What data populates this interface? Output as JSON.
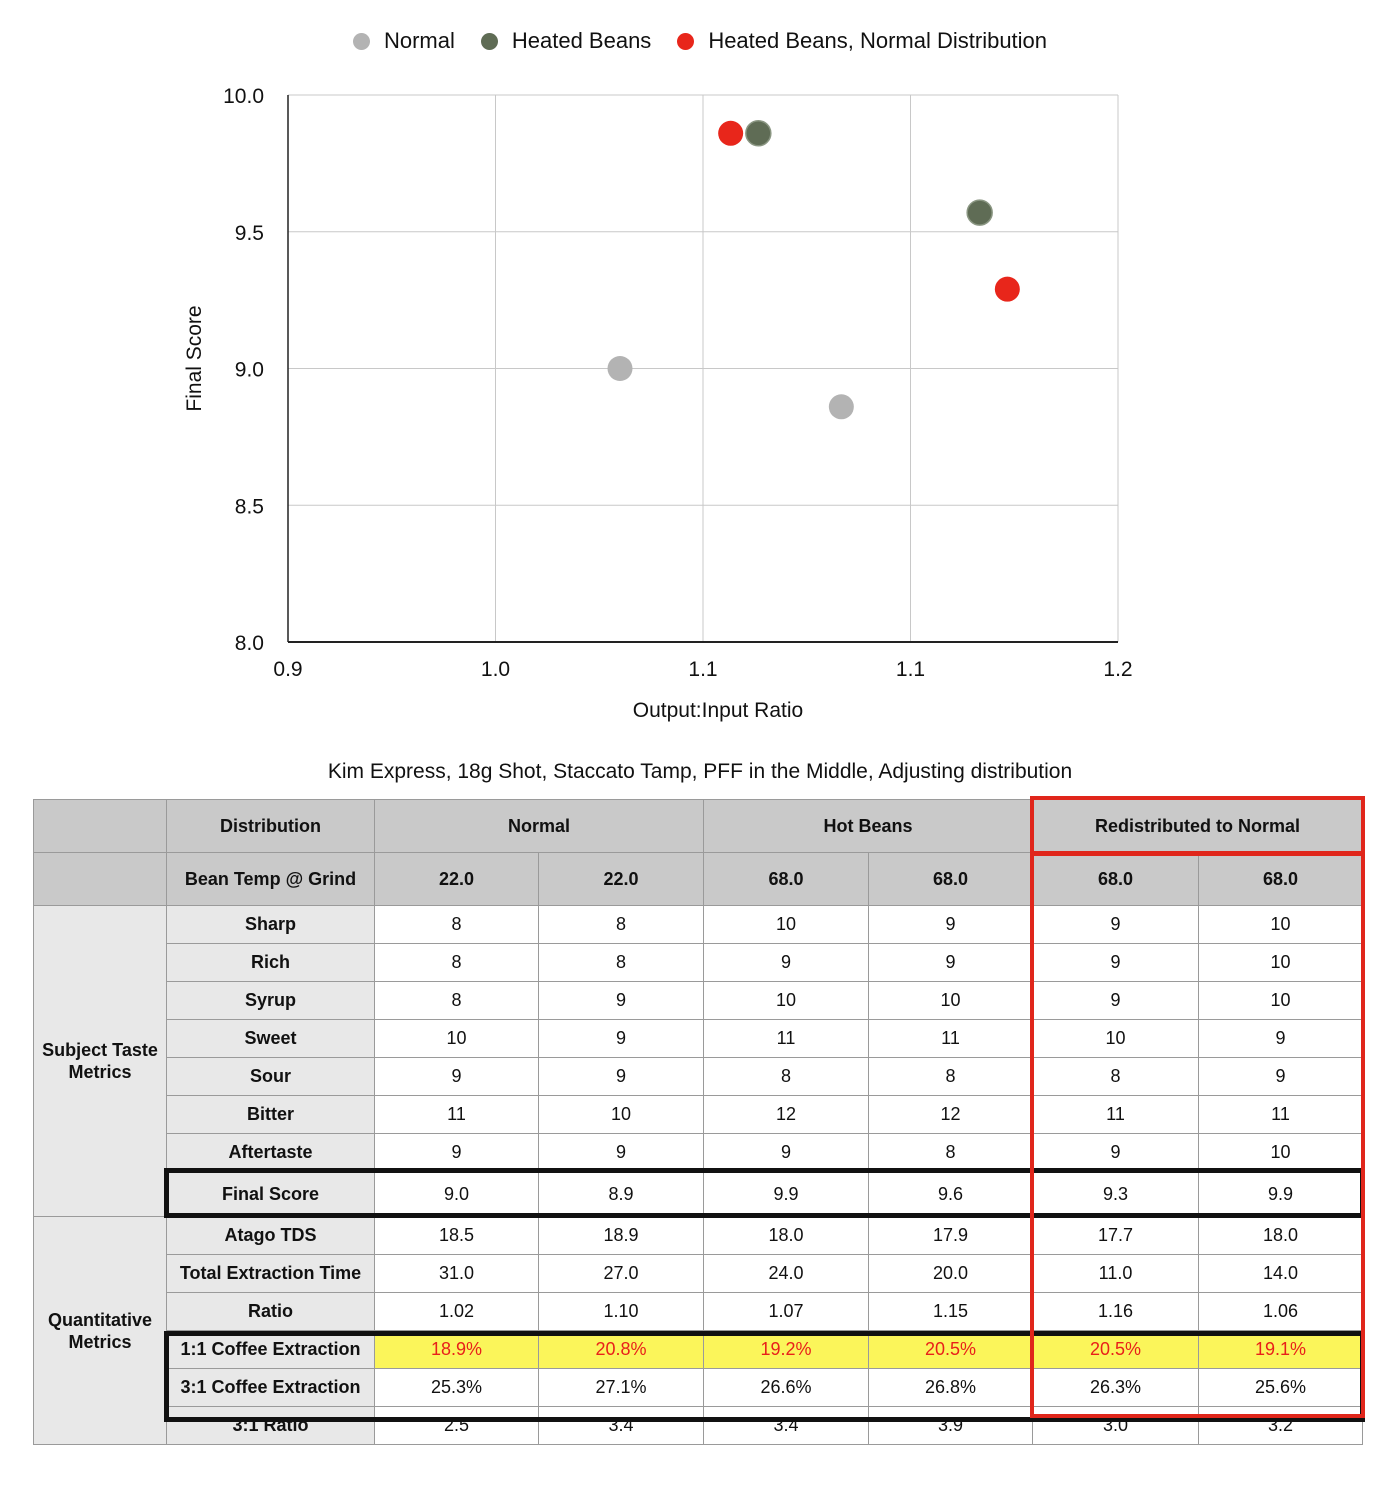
{
  "colors": {
    "normal": "#b3b3b3",
    "heated": "#5f6c55",
    "heated_normal_dist": "#e8261b",
    "highlight_yellow": "#fbf55a",
    "highlight_red_text": "#e8201a",
    "box_red": "#e0261b",
    "header_gray": "#c9c9c9",
    "label_gray": "#e8e8e8"
  },
  "legend": [
    {
      "label": "Normal",
      "color": "#b3b3b3"
    },
    {
      "label": "Heated Beans",
      "color": "#5f6c55"
    },
    {
      "label": "Heated Beans, Normal Distribution",
      "color": "#e8261b"
    }
  ],
  "chart_data": {
    "type": "scatter",
    "xlabel": "Output:Input Ratio",
    "ylabel": "Final Score",
    "xlim": [
      0.9,
      1.2
    ],
    "ylim": [
      8.0,
      10.0
    ],
    "x_ticks": [
      "0.9",
      "1.0",
      "1.1",
      "1.1",
      "1.2"
    ],
    "y_ticks": [
      "8.0",
      "8.5",
      "9.0",
      "9.5",
      "10.0"
    ],
    "grid": true,
    "legend_position": "top",
    "series": [
      {
        "name": "Normal",
        "color": "#b3b3b3",
        "points": [
          {
            "x": 1.02,
            "y": 9.0
          },
          {
            "x": 1.1,
            "y": 8.86
          }
        ]
      },
      {
        "name": "Heated Beans",
        "color": "#5f6c55",
        "points": [
          {
            "x": 1.07,
            "y": 9.86
          },
          {
            "x": 1.15,
            "y": 9.57
          }
        ]
      },
      {
        "name": "Heated Beans, Normal Distribution",
        "color": "#e8261b",
        "points": [
          {
            "x": 1.06,
            "y": 9.86
          },
          {
            "x": 1.16,
            "y": 9.29
          }
        ]
      }
    ]
  },
  "table": {
    "title": "Kim Express, 18g Shot, Staccato Tamp, PFF in the Middle, Adjusting distribution",
    "header": {
      "distribution_label": "Distribution",
      "groups": [
        "Normal",
        "Hot Beans",
        "Redistributed to Normal"
      ],
      "bean_temp_label": "Bean Temp @ Grind",
      "bean_temps": [
        "22.0",
        "22.0",
        "68.0",
        "68.0",
        "68.0",
        "68.0"
      ]
    },
    "taste_group_label": "Subject Taste Metrics",
    "taste_rows": [
      {
        "label": "Sharp",
        "values": [
          "8",
          "8",
          "10",
          "9",
          "9",
          "10"
        ]
      },
      {
        "label": "Rich",
        "values": [
          "8",
          "8",
          "9",
          "9",
          "9",
          "10"
        ]
      },
      {
        "label": "Syrup",
        "values": [
          "8",
          "9",
          "10",
          "10",
          "9",
          "10"
        ]
      },
      {
        "label": "Sweet",
        "values": [
          "10",
          "9",
          "11",
          "11",
          "10",
          "9"
        ]
      },
      {
        "label": "Sour",
        "values": [
          "9",
          "9",
          "8",
          "8",
          "8",
          "9"
        ]
      },
      {
        "label": "Bitter",
        "values": [
          "11",
          "10",
          "12",
          "12",
          "11",
          "11"
        ]
      },
      {
        "label": "Aftertaste",
        "values": [
          "9",
          "9",
          "9",
          "8",
          "9",
          "10"
        ]
      }
    ],
    "final_score": {
      "label": "Final Score",
      "values": [
        "9.0",
        "8.9",
        "9.9",
        "9.6",
        "9.3",
        "9.9"
      ]
    },
    "quant_group_label": "Quantitative Metrics",
    "quant_rows": [
      {
        "label": "Atago TDS",
        "values": [
          "18.5",
          "18.9",
          "18.0",
          "17.9",
          "17.7",
          "18.0"
        ]
      },
      {
        "label": "Total Extraction Time",
        "values": [
          "31.0",
          "27.0",
          "24.0",
          "20.0",
          "11.0",
          "14.0"
        ]
      },
      {
        "label": "Ratio",
        "values": [
          "1.02",
          "1.10",
          "1.07",
          "1.15",
          "1.16",
          "1.06"
        ]
      }
    ],
    "extraction_rows": [
      {
        "label": "1:1 Coffee Extraction",
        "values": [
          "18.9%",
          "20.8%",
          "19.2%",
          "20.5%",
          "20.5%",
          "19.1%"
        ]
      },
      {
        "label": "3:1 Coffee Extraction",
        "values": [
          "25.3%",
          "27.1%",
          "26.6%",
          "26.8%",
          "26.3%",
          "25.6%"
        ]
      }
    ],
    "ratio31": {
      "label": "3:1 Ratio",
      "values": [
        "2.5",
        "3.4",
        "3.4",
        "3.9",
        "3.0",
        "3.2"
      ]
    }
  }
}
